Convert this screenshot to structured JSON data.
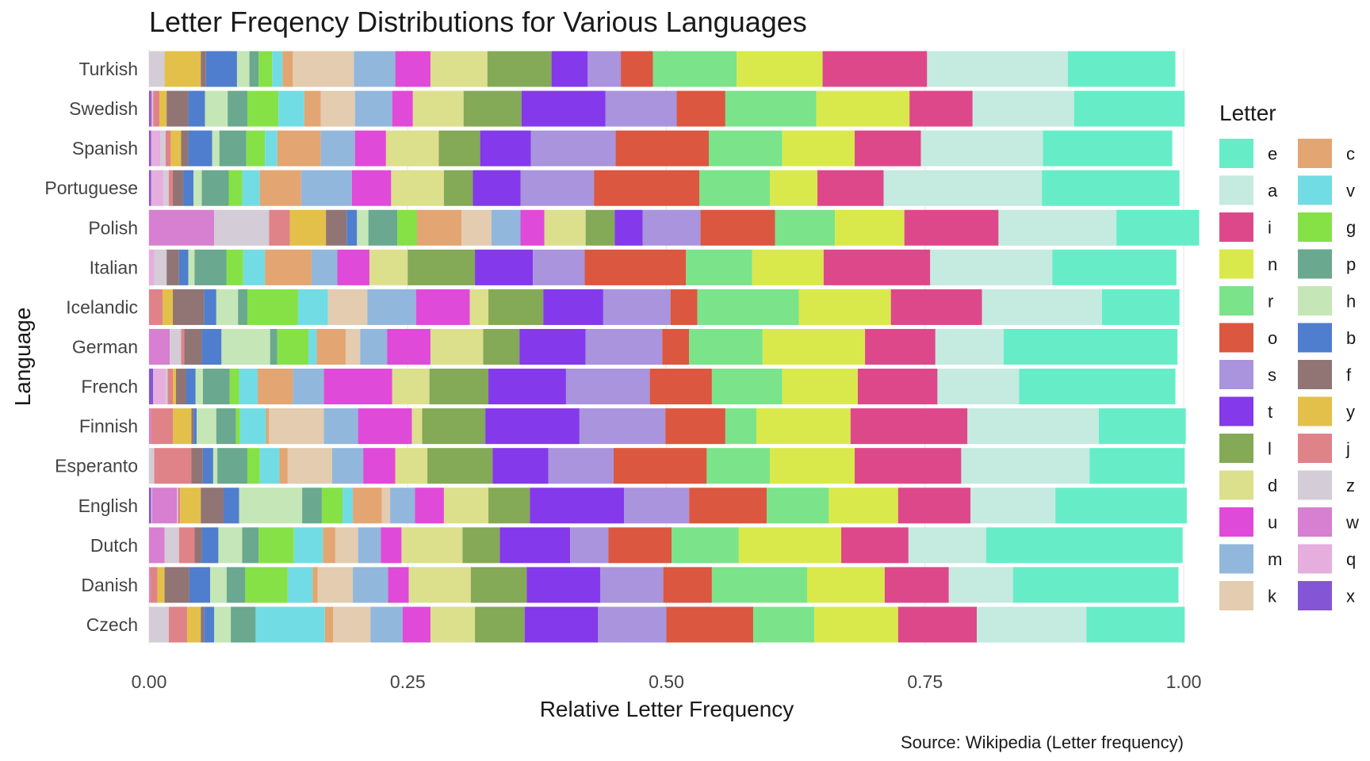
{
  "chart_data": {
    "type": "bar",
    "orientation": "horizontal",
    "stacked": true,
    "title": "Letter Freqency Distributions for Various Languages",
    "xlabel": "Relative Letter Frequency",
    "ylabel": "Language",
    "caption": "Source: Wikipedia (Letter frequency)",
    "xlim": [
      0,
      1
    ],
    "x_ticks": [
      "0.00",
      "0.25",
      "0.50",
      "0.75",
      "1.00"
    ],
    "grid": "vertical",
    "legend_title": "Letter",
    "legend_position": "right",
    "stack_order": [
      "x",
      "q",
      "w",
      "z",
      "j",
      "y",
      "f",
      "b",
      "h",
      "p",
      "g",
      "v",
      "c",
      "k",
      "m",
      "u",
      "d",
      "l",
      "t",
      "s",
      "o",
      "r",
      "n",
      "i",
      "a",
      "e"
    ],
    "legend": [
      {
        "letter": "e",
        "color": "#66EDC8"
      },
      {
        "letter": "a",
        "color": "#C5EADF"
      },
      {
        "letter": "i",
        "color": "#DD488B"
      },
      {
        "letter": "n",
        "color": "#D9E94B"
      },
      {
        "letter": "r",
        "color": "#7BE38A"
      },
      {
        "letter": "o",
        "color": "#DB573F"
      },
      {
        "letter": "s",
        "color": "#A994DD"
      },
      {
        "letter": "t",
        "color": "#8439EA"
      },
      {
        "letter": "l",
        "color": "#84A957"
      },
      {
        "letter": "d",
        "color": "#DCDF8C"
      },
      {
        "letter": "u",
        "color": "#E04AD8"
      },
      {
        "letter": "m",
        "color": "#92B7DC"
      },
      {
        "letter": "k",
        "color": "#E3CCAF"
      },
      {
        "letter": "c",
        "color": "#E3A571"
      },
      {
        "letter": "v",
        "color": "#72DCE4"
      },
      {
        "letter": "g",
        "color": "#86E146"
      },
      {
        "letter": "p",
        "color": "#6AA88F"
      },
      {
        "letter": "h",
        "color": "#C5E6B6"
      },
      {
        "letter": "b",
        "color": "#4F7ECE"
      },
      {
        "letter": "f",
        "color": "#917474"
      },
      {
        "letter": "y",
        "color": "#E3C04A"
      },
      {
        "letter": "j",
        "color": "#DF8389"
      },
      {
        "letter": "z",
        "color": "#D4CCD7"
      },
      {
        "letter": "w",
        "color": "#D77FD1"
      },
      {
        "letter": "q",
        "color": "#E5AEDD"
      },
      {
        "letter": "x",
        "color": "#8455D4"
      }
    ],
    "languages": [
      {
        "name": "Turkish",
        "values": {
          "x": 0.0,
          "q": 0.0,
          "w": 0.0,
          "z": 0.015,
          "j": 0.0,
          "y": 0.035,
          "f": 0.005,
          "b": 0.03,
          "h": 0.012,
          "p": 0.009,
          "g": 0.013,
          "v": 0.01,
          "c": 0.01,
          "k": 0.059,
          "m": 0.04,
          "u": 0.034,
          "d": 0.055,
          "l": 0.062,
          "t": 0.035,
          "s": 0.032,
          "o": 0.031,
          "r": 0.081,
          "n": 0.083,
          "i": 0.101,
          "a": 0.136,
          "e": 0.104
        }
      },
      {
        "name": "Swedish",
        "values": {
          "x": 0.002,
          "q": 0.0,
          "w": 0.001,
          "z": 0.001,
          "j": 0.006,
          "y": 0.007,
          "f": 0.021,
          "b": 0.016,
          "h": 0.022,
          "p": 0.019,
          "g": 0.03,
          "v": 0.025,
          "c": 0.016,
          "k": 0.033,
          "m": 0.036,
          "u": 0.02,
          "d": 0.049,
          "l": 0.056,
          "t": 0.081,
          "s": 0.069,
          "o": 0.047,
          "r": 0.088,
          "n": 0.09,
          "i": 0.061,
          "a": 0.098,
          "e": 0.107
        }
      },
      {
        "name": "Spanish",
        "values": {
          "x": 0.002,
          "q": 0.009,
          "w": 0.0,
          "z": 0.005,
          "j": 0.005,
          "y": 0.01,
          "f": 0.007,
          "b": 0.023,
          "h": 0.007,
          "p": 0.026,
          "g": 0.018,
          "v": 0.012,
          "c": 0.042,
          "k": 0.0,
          "m": 0.033,
          "u": 0.03,
          "d": 0.051,
          "l": 0.04,
          "t": 0.049,
          "s": 0.082,
          "o": 0.09,
          "r": 0.071,
          "n": 0.07,
          "i": 0.064,
          "a": 0.118,
          "e": 0.125
        }
      },
      {
        "name": "Portuguese",
        "values": {
          "x": 0.002,
          "q": 0.012,
          "w": 0.0,
          "z": 0.005,
          "j": 0.004,
          "y": 0.0,
          "f": 0.01,
          "b": 0.01,
          "h": 0.008,
          "p": 0.026,
          "g": 0.013,
          "v": 0.017,
          "c": 0.04,
          "k": 0.0,
          "m": 0.049,
          "u": 0.038,
          "d": 0.051,
          "l": 0.028,
          "t": 0.046,
          "s": 0.071,
          "o": 0.102,
          "r": 0.068,
          "n": 0.046,
          "i": 0.064,
          "a": 0.153,
          "e": 0.133
        }
      },
      {
        "name": "Polish",
        "values": {
          "x": 0.0,
          "q": 0.0,
          "w": 0.063,
          "z": 0.053,
          "j": 0.02,
          "y": 0.035,
          "f": 0.02,
          "b": 0.01,
          "h": 0.011,
          "p": 0.028,
          "g": 0.019,
          "v": 0.0,
          "c": 0.043,
          "k": 0.029,
          "m": 0.028,
          "u": 0.023,
          "d": 0.04,
          "l": 0.028,
          "t": 0.027,
          "s": 0.056,
          "o": 0.072,
          "r": 0.058,
          "n": 0.067,
          "i": 0.091,
          "a": 0.114,
          "e": 0.08
        }
      },
      {
        "name": "Italian",
        "values": {
          "x": 0.0,
          "q": 0.005,
          "w": 0.0,
          "z": 0.012,
          "j": 0.0,
          "y": 0.0,
          "f": 0.012,
          "b": 0.009,
          "h": 0.006,
          "p": 0.031,
          "g": 0.016,
          "v": 0.021,
          "c": 0.045,
          "k": 0.0,
          "m": 0.025,
          "u": 0.031,
          "d": 0.037,
          "l": 0.065,
          "t": 0.056,
          "s": 0.05,
          "o": 0.098,
          "r": 0.064,
          "n": 0.069,
          "i": 0.103,
          "a": 0.118,
          "e": 0.12
        }
      },
      {
        "name": "Icelandic",
        "values": {
          "x": 0.0,
          "q": 0.0,
          "w": 0.0,
          "z": 0.0,
          "j": 0.013,
          "y": 0.01,
          "f": 0.03,
          "b": 0.012,
          "h": 0.021,
          "p": 0.009,
          "g": 0.049,
          "v": 0.029,
          "c": 0.0,
          "k": 0.038,
          "m": 0.047,
          "u": 0.052,
          "d": 0.018,
          "l": 0.053,
          "t": 0.058,
          "s": 0.065,
          "o": 0.026,
          "r": 0.098,
          "n": 0.089,
          "i": 0.088,
          "a": 0.116,
          "e": 0.075
        }
      },
      {
        "name": "German",
        "values": {
          "x": 0.0,
          "q": 0.0,
          "w": 0.02,
          "z": 0.011,
          "j": 0.003,
          "y": 0.0,
          "f": 0.017,
          "b": 0.019,
          "h": 0.047,
          "p": 0.007,
          "g": 0.03,
          "v": 0.008,
          "c": 0.028,
          "k": 0.014,
          "m": 0.026,
          "u": 0.042,
          "d": 0.051,
          "l": 0.035,
          "t": 0.064,
          "s": 0.074,
          "o": 0.026,
          "r": 0.071,
          "n": 0.099,
          "i": 0.068,
          "a": 0.066,
          "e": 0.168
        }
      },
      {
        "name": "French",
        "values": {
          "x": 0.004,
          "q": 0.012,
          "w": 0.0,
          "z": 0.002,
          "j": 0.005,
          "y": 0.003,
          "f": 0.01,
          "b": 0.009,
          "h": 0.007,
          "p": 0.026,
          "g": 0.009,
          "v": 0.018,
          "c": 0.034,
          "k": 0.0,
          "m": 0.03,
          "u": 0.066,
          "d": 0.036,
          "l": 0.057,
          "t": 0.075,
          "s": 0.081,
          "o": 0.06,
          "r": 0.068,
          "n": 0.073,
          "i": 0.077,
          "a": 0.079,
          "e": 0.151
        }
      },
      {
        "name": "Finnish",
        "values": {
          "x": 0.0,
          "q": 0.0,
          "w": 0.002,
          "z": 0.0,
          "j": 0.021,
          "y": 0.018,
          "f": 0.002,
          "b": 0.003,
          "h": 0.019,
          "p": 0.019,
          "g": 0.004,
          "v": 0.025,
          "c": 0.003,
          "k": 0.053,
          "m": 0.033,
          "u": 0.052,
          "d": 0.01,
          "l": 0.061,
          "t": 0.091,
          "s": 0.083,
          "o": 0.058,
          "r": 0.03,
          "n": 0.091,
          "i": 0.113,
          "a": 0.127,
          "e": 0.084
        }
      },
      {
        "name": "Esperanto",
        "values": {
          "x": 0.0,
          "q": 0.0,
          "w": 0.0,
          "z": 0.005,
          "j": 0.036,
          "y": 0.0,
          "f": 0.011,
          "b": 0.01,
          "h": 0.004,
          "p": 0.029,
          "g": 0.012,
          "v": 0.019,
          "c": 0.008,
          "k": 0.043,
          "m": 0.03,
          "u": 0.031,
          "d": 0.031,
          "l": 0.063,
          "t": 0.054,
          "s": 0.063,
          "o": 0.09,
          "r": 0.061,
          "n": 0.082,
          "i": 0.103,
          "a": 0.124,
          "e": 0.092
        }
      },
      {
        "name": "English",
        "values": {
          "x": 0.002,
          "q": 0.001,
          "w": 0.024,
          "z": 0.001,
          "j": 0.002,
          "y": 0.02,
          "f": 0.022,
          "b": 0.015,
          "h": 0.061,
          "p": 0.019,
          "g": 0.02,
          "v": 0.01,
          "c": 0.028,
          "k": 0.008,
          "m": 0.024,
          "u": 0.028,
          "d": 0.043,
          "l": 0.04,
          "t": 0.091,
          "s": 0.063,
          "o": 0.075,
          "r": 0.06,
          "n": 0.067,
          "i": 0.07,
          "a": 0.082,
          "e": 0.127
        }
      },
      {
        "name": "Dutch",
        "values": {
          "x": 0.0,
          "q": 0.0,
          "w": 0.015,
          "z": 0.014,
          "j": 0.015,
          "y": 0.0,
          "f": 0.007,
          "b": 0.016,
          "h": 0.023,
          "p": 0.016,
          "g": 0.034,
          "v": 0.028,
          "c": 0.012,
          "k": 0.022,
          "m": 0.022,
          "u": 0.02,
          "d": 0.059,
          "l": 0.036,
          "t": 0.068,
          "s": 0.037,
          "o": 0.061,
          "r": 0.065,
          "n": 0.099,
          "i": 0.065,
          "a": 0.075,
          "e": 0.19
        }
      },
      {
        "name": "Danish",
        "values": {
          "x": 0.0,
          "q": 0.0,
          "w": 0.001,
          "z": 0.0,
          "j": 0.007,
          "y": 0.007,
          "f": 0.024,
          "b": 0.02,
          "h": 0.016,
          "p": 0.018,
          "g": 0.041,
          "v": 0.024,
          "c": 0.005,
          "k": 0.034,
          "m": 0.034,
          "u": 0.02,
          "d": 0.06,
          "l": 0.054,
          "t": 0.071,
          "s": 0.061,
          "o": 0.047,
          "r": 0.092,
          "n": 0.075,
          "i": 0.062,
          "a": 0.062,
          "e": 0.16
        }
      },
      {
        "name": "Czech",
        "values": {
          "x": 0.0,
          "q": 0.0,
          "w": 0.0,
          "z": 0.019,
          "j": 0.018,
          "y": 0.013,
          "f": 0.003,
          "b": 0.01,
          "h": 0.016,
          "p": 0.024,
          "g": 0.0,
          "v": 0.067,
          "c": 0.008,
          "k": 0.036,
          "m": 0.031,
          "u": 0.027,
          "d": 0.043,
          "l": 0.048,
          "t": 0.071,
          "s": 0.066,
          "o": 0.084,
          "r": 0.059,
          "n": 0.081,
          "i": 0.076,
          "a": 0.106,
          "e": 0.095
        }
      }
    ]
  }
}
